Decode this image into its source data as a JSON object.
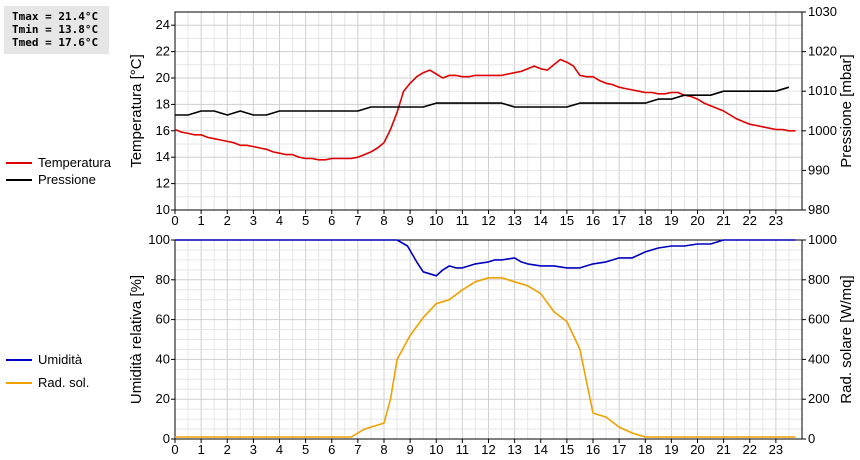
{
  "stats": {
    "tmax": "Tmax = 21.4°C",
    "tmin": "Tmin = 13.8°C",
    "tmed": "Tmed = 17.6°C"
  },
  "legends": {
    "top": [
      {
        "label": "Temperatura",
        "color": "#e00000"
      },
      {
        "label": "Pressione",
        "color": "#000000"
      }
    ],
    "bottom": [
      {
        "label": "Umidità",
        "color": "#0000c0"
      },
      {
        "label": "Rad. sol.",
        "color": "#f0a000"
      }
    ]
  },
  "chart_data": [
    {
      "type": "line",
      "xlabel": "",
      "ylabel": "Temperatura [°C]",
      "y2label": "Pressione [mbar]",
      "xlim": [
        0,
        24
      ],
      "ylim": [
        10,
        25
      ],
      "y2lim": [
        980,
        1030
      ],
      "xticks": [
        "0",
        "1",
        "2",
        "3",
        "4",
        "5",
        "6",
        "7",
        "8",
        "9",
        "10",
        "11",
        "12",
        "13",
        "14",
        "15",
        "16",
        "17",
        "18",
        "19",
        "20",
        "21",
        "22",
        "23"
      ],
      "yticks": [
        "10",
        "12",
        "14",
        "16",
        "18",
        "20",
        "22",
        "24"
      ],
      "y2ticks": [
        "980",
        "990",
        "1000",
        "1010",
        "1020",
        "1030"
      ],
      "grid": true,
      "legend_position": "left",
      "series": [
        {
          "name": "Temperatura",
          "axis": "left",
          "color": "#e00000",
          "x": [
            0,
            0.25,
            0.5,
            0.75,
            1,
            1.25,
            1.5,
            1.75,
            2,
            2.25,
            2.5,
            2.75,
            3,
            3.25,
            3.5,
            3.75,
            4,
            4.25,
            4.5,
            4.75,
            5,
            5.25,
            5.5,
            5.75,
            6,
            6.25,
            6.5,
            6.75,
            7,
            7.25,
            7.5,
            7.75,
            8,
            8.25,
            8.5,
            8.75,
            9,
            9.25,
            9.5,
            9.75,
            10,
            10.25,
            10.5,
            10.75,
            11,
            11.25,
            11.5,
            11.75,
            12,
            12.25,
            12.5,
            12.75,
            13,
            13.25,
            13.5,
            13.75,
            14,
            14.25,
            14.5,
            14.75,
            15,
            15.25,
            15.5,
            15.75,
            16,
            16.25,
            16.5,
            16.75,
            17,
            17.25,
            17.5,
            17.75,
            18,
            18.25,
            18.5,
            18.75,
            19,
            19.25,
            19.5,
            19.75,
            20,
            20.25,
            20.5,
            20.75,
            21,
            21.25,
            21.5,
            21.75,
            22,
            22.25,
            22.5,
            22.75,
            23,
            23.25,
            23.5,
            23.75
          ],
          "y": [
            16.1,
            15.9,
            15.8,
            15.7,
            15.7,
            15.5,
            15.4,
            15.3,
            15.2,
            15.1,
            14.9,
            14.9,
            14.8,
            14.7,
            14.6,
            14.4,
            14.3,
            14.2,
            14.2,
            14.0,
            13.9,
            13.9,
            13.8,
            13.8,
            13.9,
            13.9,
            13.9,
            13.9,
            14.0,
            14.2,
            14.4,
            14.7,
            15.1,
            16.1,
            17.4,
            19.0,
            19.6,
            20.1,
            20.4,
            20.6,
            20.3,
            20.0,
            20.2,
            20.2,
            20.1,
            20.1,
            20.2,
            20.2,
            20.2,
            20.2,
            20.2,
            20.3,
            20.4,
            20.5,
            20.7,
            20.9,
            20.7,
            20.6,
            21.0,
            21.4,
            21.2,
            20.9,
            20.2,
            20.1,
            20.1,
            19.8,
            19.6,
            19.5,
            19.3,
            19.2,
            19.1,
            19.0,
            18.9,
            18.9,
            18.8,
            18.8,
            18.9,
            18.9,
            18.7,
            18.6,
            18.4,
            18.1,
            17.9,
            17.7,
            17.5,
            17.2,
            16.9,
            16.7,
            16.5,
            16.4,
            16.3,
            16.2,
            16.1,
            16.1,
            16.0,
            16.0
          ]
        },
        {
          "name": "Pressione",
          "axis": "right",
          "color": "#000000",
          "x": [
            0,
            0.5,
            1,
            1.5,
            2,
            2.5,
            3,
            3.5,
            4,
            4.5,
            5,
            5.5,
            6,
            6.5,
            7,
            7.5,
            8,
            8.5,
            9,
            9.5,
            10,
            10.5,
            11,
            11.5,
            12,
            12.5,
            13,
            13.5,
            14,
            14.5,
            15,
            15.5,
            16,
            16.5,
            17,
            17.5,
            18,
            18.5,
            19,
            19.5,
            20,
            20.5,
            21,
            21.5,
            22,
            22.5,
            23,
            23.5
          ],
          "y": [
            1004,
            1004,
            1005,
            1005,
            1004,
            1005,
            1004,
            1004,
            1005,
            1005,
            1005,
            1005,
            1005,
            1005,
            1005,
            1006,
            1006,
            1006,
            1006,
            1006,
            1007,
            1007,
            1007,
            1007,
            1007,
            1007,
            1006,
            1006,
            1006,
            1006,
            1006,
            1007,
            1007,
            1007,
            1007,
            1007,
            1007,
            1008,
            1008,
            1009,
            1009,
            1009,
            1010,
            1010,
            1010,
            1010,
            1010,
            1011
          ]
        }
      ]
    },
    {
      "type": "line",
      "xlabel": "",
      "ylabel": "Umidità relativa [%]",
      "y2label": "Rad. solare [W/mq]",
      "xlim": [
        0,
        24
      ],
      "ylim": [
        0,
        100
      ],
      "y2lim": [
        0,
        1000
      ],
      "xticks": [
        "0",
        "1",
        "2",
        "3",
        "4",
        "5",
        "6",
        "7",
        "8",
        "9",
        "10",
        "11",
        "12",
        "13",
        "14",
        "15",
        "16",
        "17",
        "18",
        "19",
        "20",
        "21",
        "22",
        "23"
      ],
      "yticks": [
        "0",
        "20",
        "40",
        "60",
        "80",
        "100"
      ],
      "y2ticks": [
        "0",
        "200",
        "400",
        "600",
        "800",
        "1000"
      ],
      "grid": true,
      "legend_position": "left",
      "series": [
        {
          "name": "Umidità",
          "axis": "left",
          "color": "#0000c0",
          "x": [
            0,
            8.5,
            8.9,
            9.25,
            9.5,
            10,
            10.25,
            10.5,
            10.75,
            11,
            11.25,
            11.5,
            12,
            12.25,
            12.5,
            13,
            13.25,
            13.5,
            14,
            14.5,
            15,
            15.5,
            16,
            16.5,
            17,
            17.5,
            18,
            18.5,
            19,
            19.5,
            20,
            20.5,
            21,
            23.75
          ],
          "y": [
            100,
            100,
            97,
            89,
            84,
            82,
            85,
            87,
            86,
            86,
            87,
            88,
            89,
            90,
            90,
            91,
            89,
            88,
            87,
            87,
            86,
            86,
            88,
            89,
            91,
            91,
            94,
            96,
            97,
            97,
            98,
            98,
            100,
            100
          ]
        },
        {
          "name": "Rad. sol.",
          "axis": "right",
          "color": "#f0a000",
          "x": [
            0,
            6.5,
            6.75,
            7,
            7.25,
            7.5,
            7.75,
            8,
            8.25,
            8.5,
            9,
            9.5,
            10,
            10.5,
            11,
            11.5,
            12,
            12.5,
            13,
            13.5,
            14,
            14.5,
            15,
            15.5,
            16,
            16.5,
            17,
            17.5,
            18,
            23.75
          ],
          "y": [
            10,
            10,
            10,
            30,
            50,
            60,
            70,
            80,
            200,
            400,
            520,
            610,
            680,
            700,
            750,
            790,
            810,
            810,
            790,
            770,
            730,
            640,
            590,
            450,
            130,
            110,
            60,
            30,
            10,
            10
          ]
        }
      ]
    }
  ]
}
